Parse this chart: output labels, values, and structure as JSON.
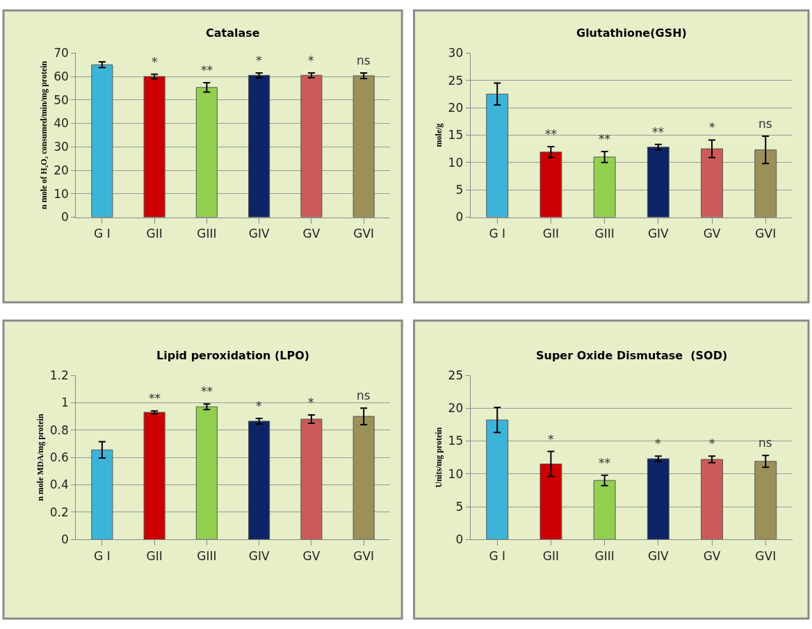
{
  "chart_data": [
    {
      "type": "bar",
      "title": "Catalase",
      "ylabel": "n mole of H₂O₂ consumed/min/mg protein",
      "categories": [
        "G I",
        "GII",
        "GIII",
        "GIV",
        "GV",
        "GVI"
      ],
      "values": [
        65,
        60,
        55.3,
        60.5,
        60.5,
        60.3
      ],
      "errors": [
        1.2,
        1,
        2,
        1,
        1,
        1.2
      ],
      "value_labels": [
        null,
        "*",
        "**",
        "*",
        "*",
        "ns"
      ],
      "colors": [
        "#3cb4d8",
        "#cc0000",
        "#92d050",
        "#0f2466",
        "#cd5a5a",
        "#9c9059"
      ],
      "ylim": [
        0,
        70
      ],
      "yticks": [
        0,
        10,
        20,
        30,
        40,
        50,
        60,
        70
      ],
      "grid": "y"
    },
    {
      "type": "bar",
      "title": "Glutathione(GSH)",
      "ylabel": "mole/g",
      "categories": [
        "G I",
        "GII",
        "GIII",
        "GIV",
        "GV",
        "GVI"
      ],
      "values": [
        22.5,
        11.9,
        11,
        12.8,
        12.5,
        12.3
      ],
      "errors": [
        2,
        1,
        1,
        0.5,
        1.6,
        2.5
      ],
      "value_labels": [
        null,
        "**",
        "**",
        "**",
        "*",
        "ns"
      ],
      "colors": [
        "#3cb4d8",
        "#cc0000",
        "#92d050",
        "#0f2466",
        "#cd5a5a",
        "#9c9059"
      ],
      "ylim": [
        0,
        30
      ],
      "yticks": [
        0,
        5,
        10,
        15,
        20,
        25,
        30
      ],
      "grid": "y"
    },
    {
      "type": "bar",
      "title": "Lipid peroxidation (LPO)",
      "ylabel": "n mole MDA/mg protein",
      "categories": [
        "G I",
        "GII",
        "GIII",
        "GIV",
        "GV",
        "GVI"
      ],
      "values": [
        0.655,
        0.93,
        0.97,
        0.865,
        0.88,
        0.9
      ],
      "errors": [
        0.06,
        0.01,
        0.02,
        0.02,
        0.03,
        0.06
      ],
      "value_labels": [
        null,
        "**",
        "**",
        "*",
        "*",
        "ns"
      ],
      "colors": [
        "#3cb4d8",
        "#cc0000",
        "#92d050",
        "#0f2466",
        "#cd5a5a",
        "#9c9059"
      ],
      "ylim": [
        0,
        1.2
      ],
      "yticks": [
        0,
        0.2,
        0.4,
        0.6,
        0.8,
        1,
        1.2
      ],
      "grid": "y"
    },
    {
      "type": "bar",
      "title": "Super Oxide Dismutase  (SOD)",
      "ylabel": "Units/mg protein",
      "categories": [
        "G I",
        "GII",
        "GIII",
        "GIV",
        "GV",
        "GVI"
      ],
      "values": [
        18.2,
        11.5,
        9,
        12.3,
        12.2,
        11.9
      ],
      "errors": [
        1.9,
        1.9,
        0.8,
        0.4,
        0.5,
        0.9
      ],
      "value_labels": [
        null,
        "*",
        "**",
        "*",
        "*",
        "ns"
      ],
      "colors": [
        "#3cb4d8",
        "#cc0000",
        "#92d050",
        "#0f2466",
        "#cd5a5a",
        "#9c9059"
      ],
      "ylim": [
        0,
        25
      ],
      "yticks": [
        0,
        5,
        10,
        15,
        20,
        25
      ],
      "grid": "y"
    }
  ]
}
